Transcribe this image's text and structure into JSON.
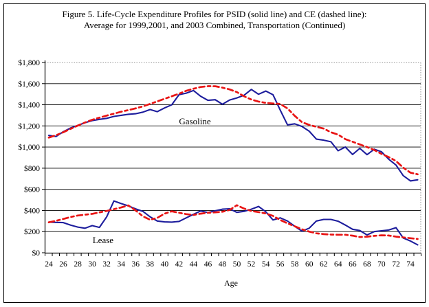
{
  "figure": {
    "title_line1": "Figure 5. Life-Cycle Expenditure Profiles for PSID (solid line) and CE (dashed line):",
    "title_line2": "Average for 1999,2001, and 2003 Combined, Transportation (Continued)"
  },
  "colors": {
    "psid_solid": "#1c1c9c",
    "ce_dashed": "#e81414",
    "gridline": "#000000",
    "frame_dotted": "#909090"
  },
  "chart_data": {
    "type": "line",
    "xlabel": "Age",
    "ylabel": "",
    "xlim": [
      23.5,
      75.5
    ],
    "ylim": [
      0,
      1800
    ],
    "ytick_step": 200,
    "grid": true,
    "y_tick_labels": [
      "$0",
      "$200",
      "$400",
      "$600",
      "$800",
      "$1,000",
      "$1,200",
      "$1,400",
      "$1,600",
      "$1,800"
    ],
    "x_tick_labels": [
      24,
      26,
      28,
      30,
      32,
      34,
      36,
      38,
      40,
      42,
      44,
      46,
      48,
      50,
      52,
      54,
      56,
      58,
      60,
      62,
      64,
      66,
      68,
      70,
      72,
      74
    ],
    "x": [
      24,
      25,
      26,
      27,
      28,
      29,
      30,
      31,
      32,
      33,
      34,
      35,
      36,
      37,
      38,
      39,
      40,
      41,
      42,
      43,
      44,
      45,
      46,
      47,
      48,
      49,
      50,
      51,
      52,
      53,
      54,
      55,
      56,
      57,
      58,
      59,
      60,
      61,
      62,
      63,
      64,
      65,
      66,
      67,
      68,
      69,
      70,
      71,
      72,
      73,
      74,
      75
    ],
    "series": [
      {
        "name": "PSID Gasoline (solid)",
        "style": "solid",
        "values": [
          1110,
          1100,
          1145,
          1180,
          1205,
          1230,
          1250,
          1262,
          1272,
          1290,
          1300,
          1310,
          1315,
          1330,
          1355,
          1335,
          1370,
          1400,
          1495,
          1510,
          1535,
          1480,
          1442,
          1448,
          1405,
          1445,
          1465,
          1490,
          1545,
          1500,
          1530,
          1495,
          1350,
          1210,
          1220,
          1195,
          1150,
          1075,
          1065,
          1050,
          965,
          1000,
          930,
          988,
          928,
          980,
          955,
          885,
          830,
          730,
          680,
          690
        ]
      },
      {
        "name": "CE Gasoline (dashed)",
        "style": "dashed",
        "values": [
          1090,
          1112,
          1140,
          1172,
          1203,
          1232,
          1258,
          1278,
          1298,
          1316,
          1334,
          1350,
          1366,
          1385,
          1408,
          1432,
          1456,
          1480,
          1505,
          1532,
          1552,
          1568,
          1576,
          1575,
          1562,
          1545,
          1520,
          1480,
          1450,
          1430,
          1418,
          1412,
          1408,
          1365,
          1295,
          1235,
          1210,
          1192,
          1175,
          1140,
          1118,
          1075,
          1050,
          1025,
          1000,
          972,
          935,
          905,
          868,
          805,
          758,
          742
        ]
      },
      {
        "name": "PSID Lease (solid)",
        "style": "solid",
        "values": [
          290,
          287,
          285,
          262,
          243,
          232,
          257,
          240,
          340,
          490,
          465,
          443,
          415,
          392,
          340,
          300,
          292,
          290,
          296,
          330,
          363,
          395,
          380,
          397,
          412,
          415,
          382,
          392,
          412,
          438,
          388,
          310,
          330,
          300,
          250,
          205,
          232,
          300,
          315,
          315,
          298,
          262,
          222,
          210,
          168,
          200,
          208,
          215,
          237,
          140,
          111,
          75
        ]
      },
      {
        "name": "CE Lease (dashed)",
        "style": "dashed",
        "values": [
          288,
          302,
          320,
          338,
          352,
          360,
          368,
          382,
          395,
          412,
          428,
          448,
          400,
          345,
          312,
          330,
          370,
          392,
          378,
          365,
          358,
          370,
          378,
          382,
          388,
          405,
          450,
          418,
          395,
          385,
          372,
          348,
          310,
          278,
          250,
          222,
          200,
          184,
          176,
          172,
          170,
          170,
          162,
          148,
          152,
          160,
          165,
          163,
          152,
          145,
          138,
          130
        ]
      }
    ],
    "annotations": [
      {
        "label": "Gasoline",
        "age": 44.2,
        "value": 1240
      },
      {
        "label": "Lease",
        "age": 31.5,
        "value": 117
      }
    ]
  }
}
